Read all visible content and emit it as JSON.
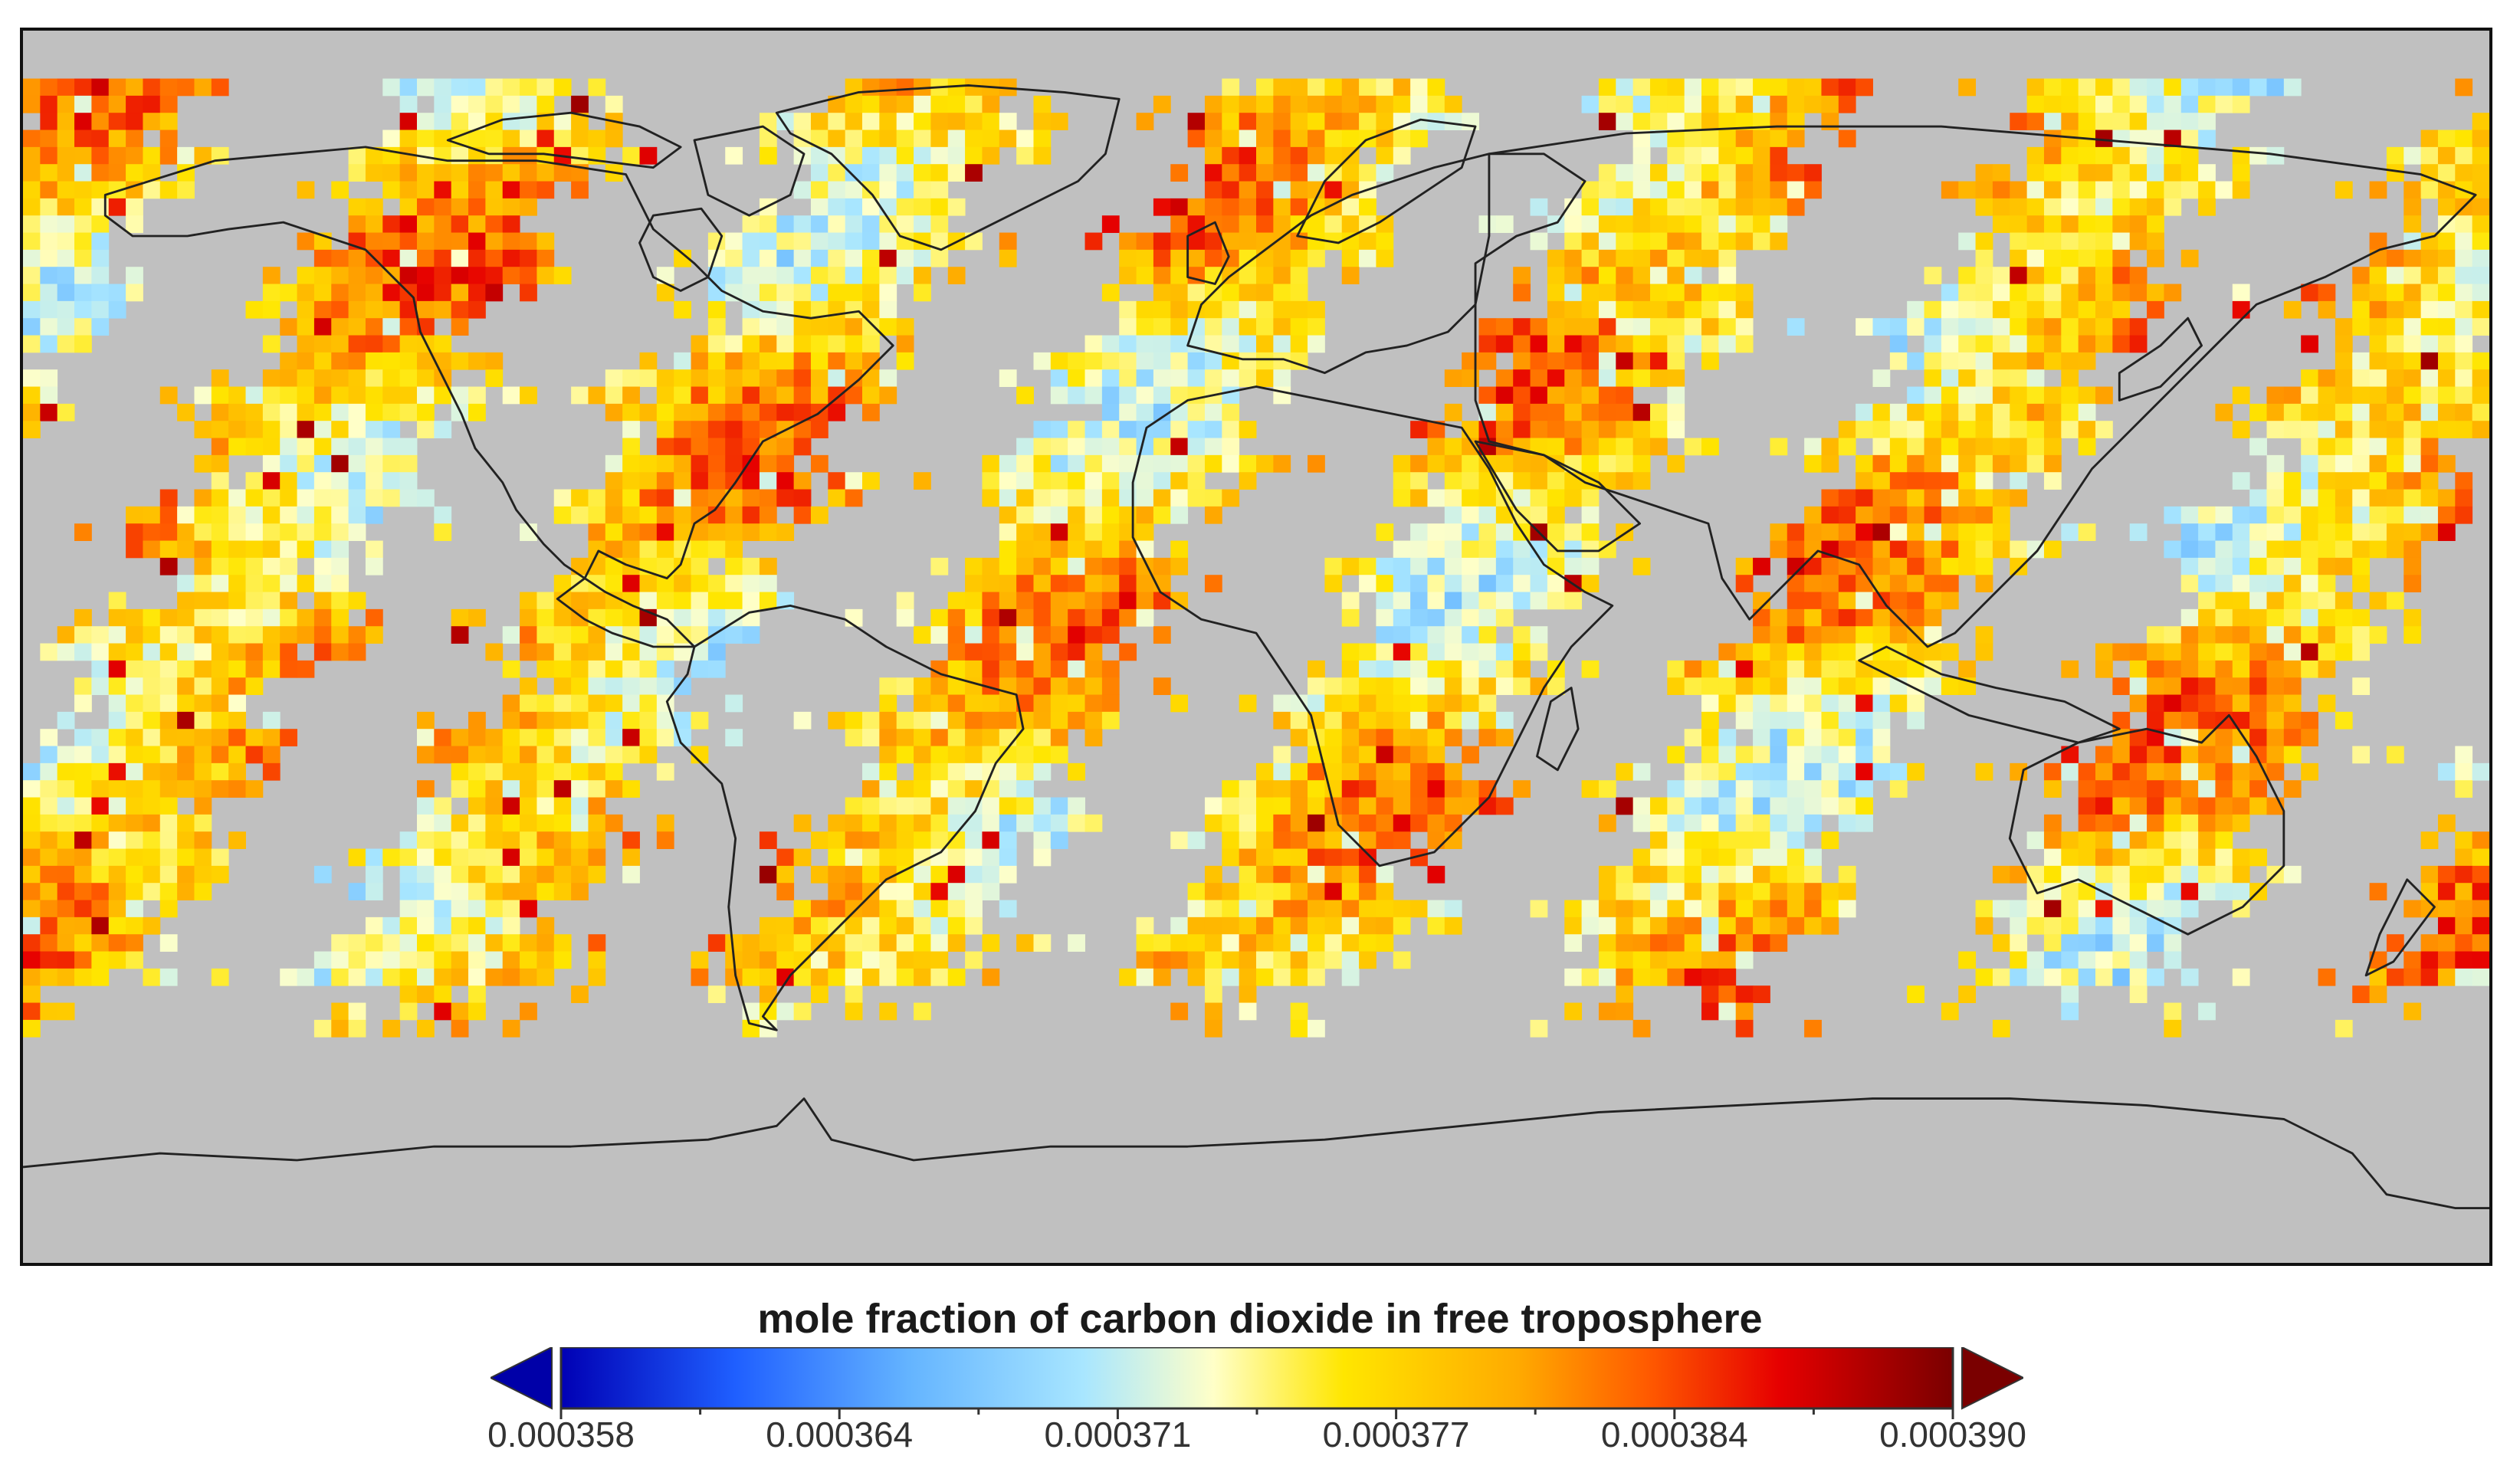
{
  "map": {
    "projection": "equirectangular",
    "background_color": "#c0c0c0",
    "coastline_color": "#222222",
    "missing_data_color": "#c0c0c0"
  },
  "colorbar": {
    "title": "mole fraction of carbon dioxide in free troposphere",
    "min": 0.000358,
    "max": 0.00039,
    "extend": "both",
    "under_color": "#0000a8",
    "over_color": "#7a0000",
    "stops": [
      {
        "value": 0.000358,
        "color": "#0000b4"
      },
      {
        "value": 0.000362,
        "color": "#1f5fff"
      },
      {
        "value": 0.000366,
        "color": "#64b4ff"
      },
      {
        "value": 0.00037,
        "color": "#a8e6ff"
      },
      {
        "value": 0.000373,
        "color": "#ffffc8"
      },
      {
        "value": 0.000376,
        "color": "#ffe600"
      },
      {
        "value": 0.00038,
        "color": "#ffaa00"
      },
      {
        "value": 0.000383,
        "color": "#ff5a00"
      },
      {
        "value": 0.000386,
        "color": "#e60000"
      },
      {
        "value": 0.00039,
        "color": "#7a0000"
      }
    ],
    "tick_labels": [
      "0.000358",
      "0.000364",
      "0.000371",
      "0.000377",
      "0.000384",
      "0.000390"
    ]
  }
}
